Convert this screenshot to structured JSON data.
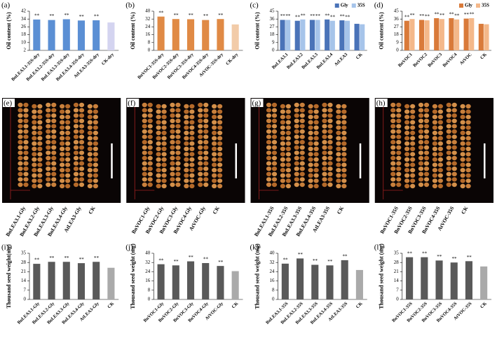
{
  "chart_data": [
    {
      "type": "bar",
      "label": "(a)",
      "ylabel": "Oil content (%)",
      "ylim": [
        2,
        42
      ],
      "yticks": [
        2,
        10,
        18,
        26,
        34,
        42
      ],
      "categories": [
        "BnLEA3.1-35S-dry",
        "BnLEA3.2-35S-dry",
        "BnLEA3.3-35S-dry",
        "BnLEA3.4-35S-dry",
        "AtLEA3-35S-dry",
        "CK-dry"
      ],
      "series": [
        {
          "colors": [
            "#5b8fd4",
            "#5b8fd4",
            "#5b8fd4",
            "#5b8fd4",
            "#5b8fd4",
            "#d4d4f0"
          ],
          "values": [
            33.5,
            33,
            33.8,
            32.5,
            32.7,
            30.5
          ],
          "significance": [
            "**",
            "**",
            "**",
            "**",
            "**",
            null
          ]
        }
      ]
    },
    {
      "type": "bar",
      "label": "(b)",
      "ylabel": "Oil content (%)",
      "ylim": [
        0,
        40
      ],
      "yticks": [
        0,
        8,
        16,
        24,
        32,
        40
      ],
      "categories": [
        "BnVOC1-35S-dry",
        "BnVOC2-35S-dry",
        "BnVOC3-35S-dry",
        "BnVOC4-35S-dry",
        "AtVOC-35S-dry",
        "CK-dry"
      ],
      "series": [
        {
          "colors": [
            "#e08a45",
            "#e08a45",
            "#e08a45",
            "#e08a45",
            "#e08a45",
            "#f2cba8"
          ],
          "values": [
            34.5,
            32,
            31.8,
            31,
            32,
            26.5
          ],
          "significance": [
            "**",
            "**",
            "**",
            "**",
            "**",
            null
          ]
        }
      ]
    },
    {
      "type": "bar",
      "label": "(c)",
      "ylabel": "Oil content (%)",
      "ylim": [
        0,
        45
      ],
      "yticks": [
        0,
        9,
        18,
        27,
        36,
        45
      ],
      "categories": [
        "BnLEA3.1",
        "BnLEA3.2",
        "BnLEA3.3",
        "BnLEA3.4",
        "AtLEA3",
        "CK"
      ],
      "series": [
        {
          "name": "Gly",
          "color": "#4a73b8",
          "values": [
            35,
            34,
            35,
            35.5,
            34.5,
            30.5
          ],
          "significance": [
            "**",
            "**",
            "**",
            "**",
            "**",
            null
          ]
        },
        {
          "name": "35S",
          "color": "#a6c4ea",
          "values": [
            35,
            35.5,
            35,
            34,
            34,
            30
          ],
          "significance": [
            "**",
            "**",
            "**",
            "**",
            "**",
            null
          ]
        }
      ]
    },
    {
      "type": "bar",
      "label": "(d)",
      "ylabel": "Oil content (%)",
      "ylim": [
        0,
        45
      ],
      "yticks": [
        0,
        9,
        18,
        27,
        36,
        45
      ],
      "categories": [
        "BnVOC1",
        "BnVOC2",
        "BnVOC3",
        "BnVOC4",
        "AtVOC",
        "CK"
      ],
      "series": [
        {
          "name": "Gly",
          "color": "#d97a3a",
          "values": [
            34,
            35,
            37,
            37,
            36.5,
            30.5
          ],
          "significance": [
            "**",
            "**",
            "**",
            "**",
            "**",
            null
          ]
        },
        {
          "name": "35S",
          "color": "#f4b88a",
          "values": [
            36,
            34.5,
            36,
            35.5,
            37,
            30
          ],
          "significance": [
            "**",
            "**",
            "**",
            "**",
            "**",
            null
          ]
        }
      ]
    },
    {
      "type": "bar",
      "label": "(i)",
      "ylabel": "Thousand seed weight(mg)",
      "ylim": [
        0,
        35
      ],
      "yticks": [
        0,
        7,
        14,
        21,
        28,
        35
      ],
      "categories": [
        "BnLEA3.1-Gly",
        "BnLEA3.2-Gly",
        "BnLEA3.3-Gly",
        "BnLEA3.4-Gly",
        "AtLEA3-Gly",
        "CK"
      ],
      "series": [
        {
          "colors": [
            "#595959",
            "#595959",
            "#595959",
            "#595959",
            "#595959",
            "#aaaaaa"
          ],
          "values": [
            27,
            28.5,
            28.5,
            27.5,
            28.5,
            24
          ],
          "significance": [
            "**",
            "**",
            "**",
            "**",
            "**",
            null
          ]
        }
      ]
    },
    {
      "type": "bar",
      "label": "(j)",
      "ylabel": "Thousand seed weight (mg)",
      "ylim": [
        0,
        40
      ],
      "yticks": [
        0,
        8,
        16,
        24,
        32,
        40
      ],
      "categories": [
        "BnVOC1-Gly",
        "BnVOC2-Gly",
        "BnVOC3-Gly",
        "BnVOC4-Gly",
        "AtVOC-Gly",
        "CK"
      ],
      "series": [
        {
          "colors": [
            "#595959",
            "#595959",
            "#595959",
            "#595959",
            "#595959",
            "#aaaaaa"
          ],
          "values": [
            30.5,
            29.5,
            33,
            31.5,
            29,
            24.5
          ],
          "significance": [
            "**",
            "**",
            "**",
            "**",
            "**",
            null
          ]
        }
      ]
    },
    {
      "type": "bar",
      "label": "(k)",
      "ylabel": "Thousand seed weight (mg)",
      "ylim": [
        0,
        40
      ],
      "yticks": [
        0,
        8,
        16,
        24,
        32,
        40
      ],
      "categories": [
        "BnLEA3.1-35S",
        "BnLEA3.2-35S",
        "BnLEA3.3-35S",
        "BnLEA3.4-35S",
        "AtLEA3-35S",
        "CK"
      ],
      "series": [
        {
          "colors": [
            "#595959",
            "#595959",
            "#595959",
            "#595959",
            "#595959",
            "#aaaaaa"
          ],
          "values": [
            31,
            35.5,
            30,
            29.5,
            34,
            25.5
          ],
          "significance": [
            "**",
            "**",
            "**",
            "**",
            "**",
            null
          ]
        }
      ]
    },
    {
      "type": "bar",
      "label": "(l)",
      "ylabel": "Thousand seed weight (mg)",
      "ylim": [
        0,
        35
      ],
      "yticks": [
        0,
        7,
        14,
        21,
        28,
        35
      ],
      "categories": [
        "BnVOC1-35S",
        "BnVOC2-35S",
        "BnVOC3-35S",
        "BnVOC4-35S",
        "AtVOC-35S",
        "CK"
      ],
      "series": [
        {
          "colors": [
            "#595959",
            "#595959",
            "#595959",
            "#595959",
            "#595959",
            "#aaaaaa"
          ],
          "values": [
            32,
            32,
            29.5,
            28,
            29,
            25
          ],
          "significance": [
            "**",
            "**",
            "**",
            "**",
            "**",
            null
          ]
        }
      ]
    }
  ],
  "photo_panels": [
    {
      "label": "(e)",
      "lanes": [
        "BnLEA3.1-Gly",
        "BnLEA3.2-Gly",
        "BnLEA3.3-Gly",
        "BnLEA3.4-Gly",
        "AtLEA3-Gly",
        "CK"
      ]
    },
    {
      "label": "(f)",
      "lanes": [
        "BnVOC1-Gly",
        "BnVOC2-Gly",
        "BnVOC3-Gly",
        "BnVOC4-Gly",
        "AtVOC-Gly",
        "CK"
      ]
    },
    {
      "label": "(g)",
      "lanes": [
        "BnLEA3.1-35S",
        "BnLEA3.2-35S",
        "BnLEA3.3-35S",
        "BnLEA3.4-35S",
        "AtLEA3-35S",
        "CK"
      ]
    },
    {
      "label": "(h)",
      "lanes": [
        "BnVOC1-35S",
        "BnVOC2-35S",
        "BnVOC3-35S",
        "BnVOC4-35S",
        "AtVOC-35S",
        "CK"
      ]
    }
  ]
}
